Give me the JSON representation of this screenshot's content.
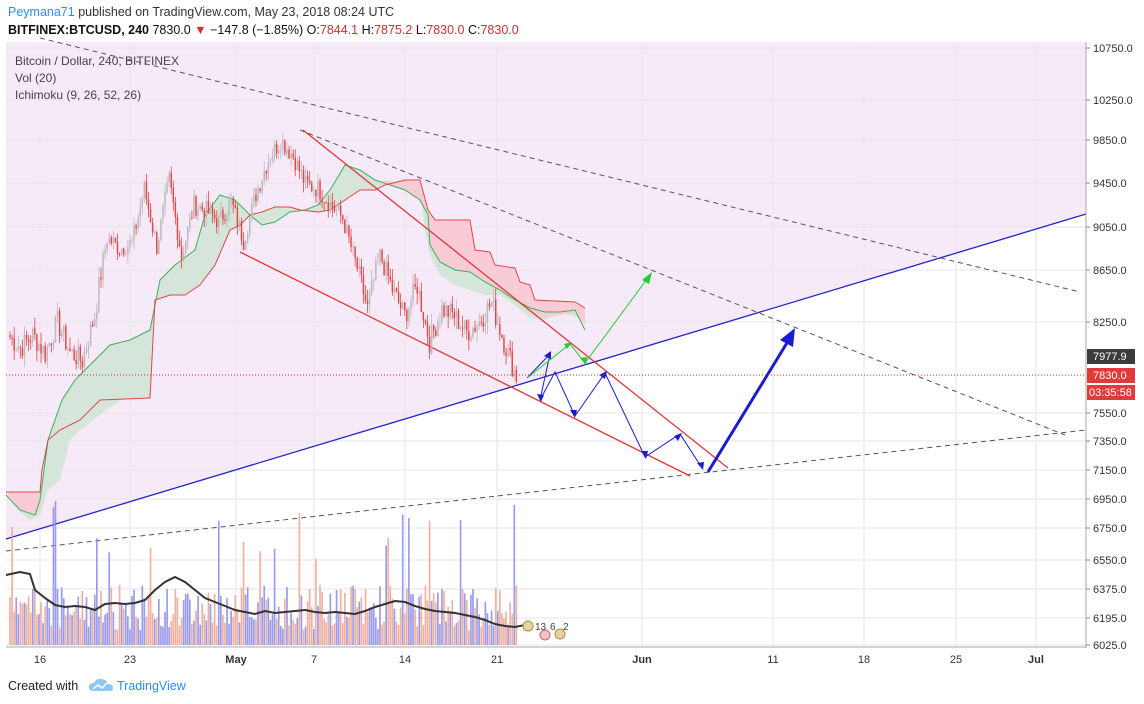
{
  "header": {
    "publisher": "Peymana71",
    "published_text": "published on TradingView.com, May 23, 2018 08:24 UTC",
    "symbol": "BITFINEX:BTCUSD, 240",
    "last": "7830.0",
    "change": "−147.8 (−1.85%)",
    "o_label": "O:",
    "o": "7844.1",
    "h_label": "H:",
    "h": "7875.2",
    "l_label": "L:",
    "l": "7830.0",
    "c_label": "C:",
    "c": "7830.0"
  },
  "legend": {
    "title": "Bitcoin / Dollar, 240, BITFINEX",
    "vol": "Vol (20)",
    "ichimoku": "Ichimoku (9, 26, 52, 26)"
  },
  "footer": {
    "created_with": "Created with",
    "brand": "TradingView"
  },
  "colors": {
    "up": "#b9b9b9",
    "down": "#e04848",
    "pink_zone": "#f5e8f8",
    "kumo_bull": "#cfe6d6",
    "kumo_bear": "#f8c9d4",
    "channel": "#e83535",
    "trend_blue": "#2424c8",
    "arrow_blue": "#1a1acf",
    "arrow_green": "#22cc33",
    "accent": "#2a8ef0"
  },
  "chart_data": {
    "type": "candlestick",
    "y_axis_ticks": [
      "10750.0",
      "10250.0",
      "9850.0",
      "9450.0",
      "9050.0",
      "8650.0",
      "8250.0",
      "7550.0",
      "7350.0",
      "7150.0",
      "6950.0",
      "6750.0",
      "6550.0",
      "6375.0",
      "6195.0",
      "6025.0"
    ],
    "x_axis_ticks": [
      "16",
      "23",
      "May",
      "7",
      "14",
      "21",
      "Jun",
      "11",
      "18",
      "25",
      "Jul"
    ],
    "price_labels": [
      {
        "name": "prev-close",
        "value": "7977.9"
      },
      {
        "name": "last-price",
        "value": "7830.0"
      },
      {
        "name": "countdown",
        "value": "03:35:58"
      }
    ],
    "volume_labels": [
      "13",
      "6",
      "2"
    ],
    "price_path_day_close": [
      [
        0,
        8150
      ],
      [
        1,
        8050
      ],
      [
        2,
        8150
      ],
      [
        3,
        8010
      ],
      [
        4,
        8250
      ],
      [
        5,
        8020
      ],
      [
        6,
        7950
      ],
      [
        7,
        8300
      ],
      [
        8,
        8950
      ],
      [
        9,
        8850
      ],
      [
        10,
        8900
      ],
      [
        11,
        9400
      ],
      [
        12,
        8870
      ],
      [
        13,
        9480
      ],
      [
        14,
        8780
      ],
      [
        15,
        9250
      ],
      [
        16,
        9200
      ],
      [
        17,
        9100
      ],
      [
        18,
        9280
      ],
      [
        19,
        8920
      ],
      [
        20,
        9350
      ],
      [
        21,
        9670
      ],
      [
        22,
        9850
      ],
      [
        23,
        9700
      ],
      [
        24,
        9440
      ],
      [
        25,
        9400
      ],
      [
        26,
        9260
      ],
      [
        27,
        9130
      ],
      [
        28,
        8730
      ],
      [
        29,
        8350
      ],
      [
        30,
        8780
      ],
      [
        31,
        8500
      ],
      [
        32,
        8300
      ],
      [
        33,
        8530
      ],
      [
        34,
        8100
      ],
      [
        35,
        8350
      ],
      [
        36,
        8300
      ],
      [
        37,
        8170
      ],
      [
        38,
        8250
      ],
      [
        39,
        8400
      ],
      [
        40,
        8100
      ],
      [
        41,
        7830
      ]
    ]
  }
}
